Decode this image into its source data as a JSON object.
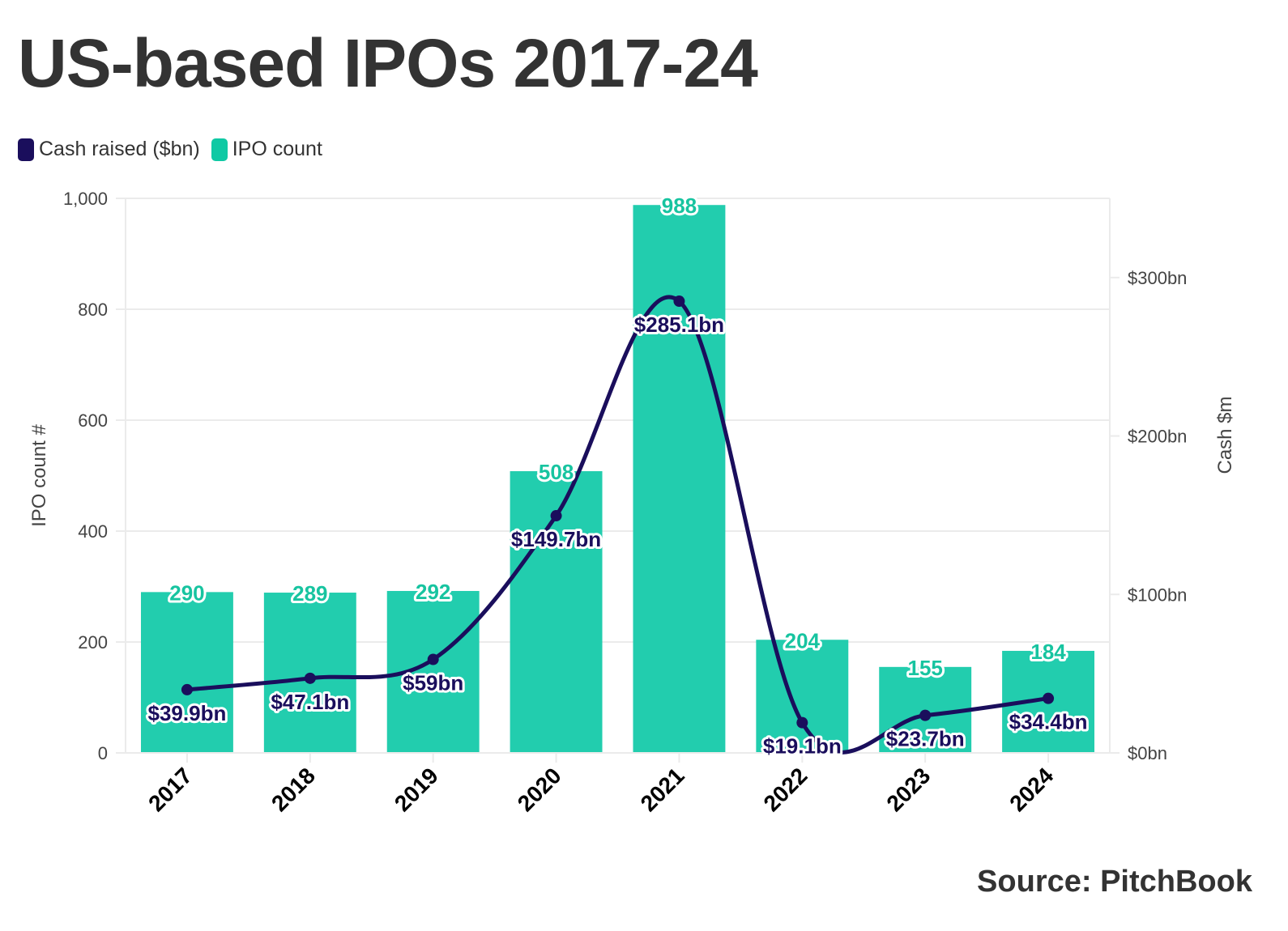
{
  "header": {
    "title": "US-based IPOs 2017-24"
  },
  "legend": {
    "items": [
      {
        "label": "Cash raised ($bn)",
        "color": "#1a0e5c"
      },
      {
        "label": "IPO count",
        "color": "#0fc9a4"
      }
    ]
  },
  "footer": {
    "source": "Source: PitchBook"
  },
  "chart_data": {
    "type": "bar",
    "title": "US-based IPOs 2017-24",
    "categories": [
      "2017",
      "2018",
      "2019",
      "2020",
      "2021",
      "2022",
      "2023",
      "2024"
    ],
    "series": [
      {
        "name": "IPO count",
        "type": "bar",
        "axis": "left",
        "color": "#22cdae",
        "label_color": "#17c4a0",
        "values": [
          290,
          289,
          292,
          508,
          988,
          204,
          155,
          184
        ],
        "labels": [
          "290",
          "289",
          "292",
          "508",
          "988",
          "204",
          "155",
          "184"
        ]
      },
      {
        "name": "Cash raised ($bn)",
        "type": "line",
        "axis": "right",
        "smooth": true,
        "color": "#1a0e5c",
        "values": [
          39.9,
          47.1,
          59,
          149.7,
          285.1,
          19.1,
          23.7,
          34.4
        ],
        "labels": [
          "$39.9bn",
          "$47.1bn",
          "$59bn",
          "$149.7bn",
          "$285.1bn",
          "$19.1bn",
          "$23.7bn",
          "$34.4bn"
        ]
      }
    ],
    "y_left": {
      "label": "IPO count #",
      "range": [
        0,
        1000
      ],
      "ticks": [
        0,
        200,
        400,
        600,
        800,
        1000
      ],
      "tick_labels": [
        "0",
        "200",
        "400",
        "600",
        "800",
        "1,000"
      ]
    },
    "y_right": {
      "label": "Cash $m",
      "range": [
        0,
        350
      ],
      "ticks": [
        0,
        100,
        200,
        300
      ],
      "tick_labels": [
        "$0bn",
        "$100bn",
        "$200bn",
        "$300bn"
      ]
    },
    "xlabel": "",
    "grid": true,
    "legend_position": "top-left"
  }
}
